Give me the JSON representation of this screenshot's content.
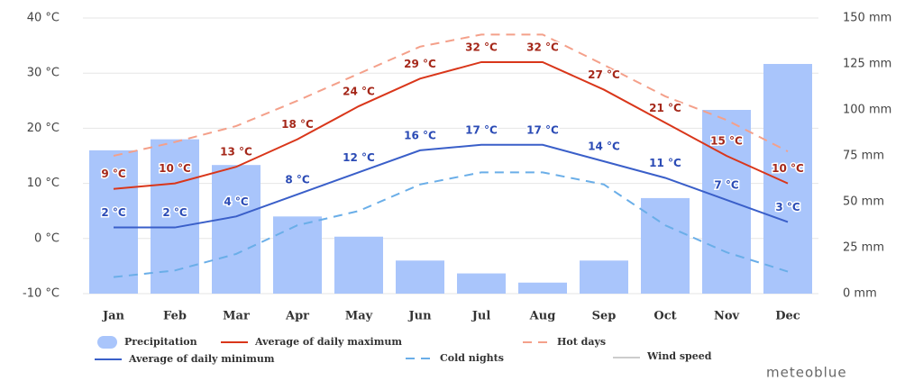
{
  "chart_data": {
    "type": "combo",
    "categories": [
      "Jan",
      "Feb",
      "Mar",
      "Apr",
      "May",
      "Jun",
      "Jul",
      "Aug",
      "Sep",
      "Oct",
      "Nov",
      "Dec"
    ],
    "ylim": [
      -10,
      40
    ],
    "yticks": [
      {
        "value": -10,
        "label": "-10 °C"
      },
      {
        "value": 0,
        "label": "0 °C"
      },
      {
        "value": 10,
        "label": "10 °C"
      },
      {
        "value": 20,
        "label": "20 °C"
      },
      {
        "value": 30,
        "label": "30 °C"
      },
      {
        "value": 40,
        "label": "40 °C"
      }
    ],
    "y2lim": [
      0,
      150
    ],
    "y2ticks": [
      {
        "value": 0,
        "label": "0 mm"
      },
      {
        "value": 25,
        "label": "25 mm"
      },
      {
        "value": 50,
        "label": "50 mm"
      },
      {
        "value": 75,
        "label": "75 mm"
      },
      {
        "value": 100,
        "label": "100 mm"
      },
      {
        "value": 125,
        "label": "125 mm"
      },
      {
        "value": 150,
        "label": "150 mm"
      }
    ],
    "grid": true,
    "series": [
      {
        "name": "Precipitation",
        "type": "bar",
        "axis": "y2",
        "color": "#a9c5fb",
        "values": [
          78,
          84,
          70,
          42,
          31,
          18,
          11,
          6,
          18,
          52,
          100,
          125
        ]
      },
      {
        "name": "Average of daily maximum",
        "type": "line",
        "color": "#d9361a",
        "values": [
          9,
          10,
          13,
          18,
          24,
          29,
          32,
          32,
          27,
          21,
          15,
          10
        ],
        "value_labels": [
          "9 °C",
          "10 °C",
          "13 °C",
          "18 °C",
          "24 °C",
          "29 °C",
          "32 °C",
          "32 °C",
          "27 °C",
          "21 °C",
          "15 °C",
          "10 °C"
        ],
        "label_color": "#a5281a"
      },
      {
        "name": "Hot days",
        "type": "line",
        "dashed": true,
        "color": "#f4a08a",
        "values": [
          15,
          17.5,
          20.4,
          25,
          29.9,
          34.8,
          37,
          37,
          31.5,
          25.8,
          21.5,
          15.8
        ]
      },
      {
        "name": "Average of daily minimum",
        "type": "line",
        "color": "#3a5fc9",
        "values": [
          2,
          2,
          4,
          8,
          12,
          16,
          17,
          17,
          14,
          11,
          7,
          3
        ],
        "value_labels": [
          "2 °C",
          "2 °C",
          "4 °C",
          "8 °C",
          "12 °C",
          "16 °C",
          "17 °C",
          "17 °C",
          "14 °C",
          "11 °C",
          "7 °C",
          "3 °C"
        ],
        "label_color": "#2b4bb5"
      },
      {
        "name": "Cold nights",
        "type": "line",
        "dashed": true,
        "color": "#6aaee8",
        "values": [
          -7,
          -5.8,
          -2.8,
          2.4,
          5,
          9.8,
          12,
          12,
          9.8,
          2.4,
          -2.5,
          -6
        ]
      }
    ],
    "legend_only": [
      {
        "name": "Wind speed",
        "color": "#cccccc"
      }
    ],
    "watermark": "meteoblue"
  }
}
